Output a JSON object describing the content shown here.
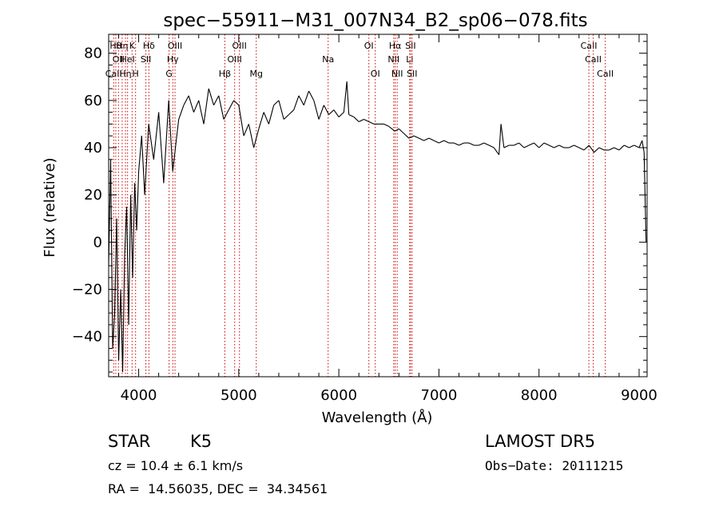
{
  "chart_data": {
    "type": "line",
    "title": "spec−55911−M31_007N34_B2_sp06−078.fits",
    "xlabel": "Wavelength (Å)",
    "ylabel": "Flux (relative)",
    "xlim": [
      3700,
      9080
    ],
    "ylim": [
      -57,
      88
    ],
    "xticks": [
      4000,
      5000,
      6000,
      7000,
      8000,
      9000
    ],
    "xtick_labels": [
      "4000",
      "5000",
      "6000",
      "7000",
      "8000",
      "9000"
    ],
    "yticks": [
      -40,
      -20,
      0,
      20,
      40,
      60,
      80
    ],
    "ytick_labels": [
      "−40",
      "−20",
      "0",
      "20",
      "40",
      "60",
      "80"
    ],
    "grid": false,
    "series": [
      {
        "color": "#000000",
        "x": [
          3700,
          3720,
          3740,
          3760,
          3780,
          3800,
          3820,
          3840,
          3860,
          3880,
          3900,
          3920,
          3940,
          3960,
          3980,
          4000,
          4030,
          4060,
          4100,
          4150,
          4200,
          4250,
          4300,
          4340,
          4400,
          4450,
          4500,
          4550,
          4600,
          4650,
          4700,
          4750,
          4800,
          4850,
          4900,
          4950,
          5000,
          5050,
          5100,
          5150,
          5200,
          5250,
          5300,
          5350,
          5400,
          5450,
          5500,
          5550,
          5600,
          5650,
          5700,
          5750,
          5800,
          5850,
          5900,
          5950,
          6000,
          6050,
          6080,
          6100,
          6150,
          6200,
          6250,
          6300,
          6350,
          6400,
          6450,
          6500,
          6560,
          6600,
          6650,
          6700,
          6750,
          6800,
          6850,
          6900,
          6950,
          7000,
          7050,
          7100,
          7150,
          7200,
          7250,
          7300,
          7350,
          7400,
          7450,
          7500,
          7550,
          7600,
          7620,
          7650,
          7700,
          7750,
          7800,
          7850,
          7900,
          7950,
          8000,
          8050,
          8100,
          8150,
          8200,
          8250,
          8300,
          8350,
          8400,
          8450,
          8500,
          8550,
          8600,
          8650,
          8700,
          8750,
          8800,
          8850,
          8900,
          8950,
          9000,
          9030,
          9050,
          9070
        ],
        "y": [
          -10,
          35,
          -45,
          -30,
          10,
          -50,
          -20,
          -55,
          -5,
          15,
          -35,
          20,
          -15,
          25,
          5,
          30,
          45,
          20,
          50,
          35,
          55,
          25,
          60,
          30,
          52,
          58,
          62,
          55,
          60,
          50,
          65,
          58,
          62,
          52,
          56,
          60,
          58,
          45,
          50,
          40,
          48,
          55,
          50,
          58,
          60,
          52,
          54,
          56,
          62,
          58,
          64,
          60,
          52,
          58,
          54,
          56,
          53,
          55,
          68,
          54,
          53,
          51,
          52,
          51,
          50,
          50,
          50,
          49,
          47,
          48,
          46,
          44,
          45,
          44,
          43,
          44,
          43,
          42,
          43,
          42,
          42,
          41,
          42,
          42,
          41,
          41,
          42,
          41,
          40,
          37,
          50,
          40,
          41,
          41,
          42,
          40,
          41,
          42,
          40,
          42,
          41,
          40,
          41,
          40,
          40,
          41,
          40,
          39,
          41,
          38,
          40,
          39,
          39,
          40,
          39,
          41,
          40,
          41,
          40,
          43,
          38,
          0
        ]
      }
    ],
    "line_markers": [
      {
        "wavelength": 3750,
        "row": 3,
        "label": "CaII"
      },
      {
        "wavelength": 3771,
        "row": 1,
        "label": "Hθ"
      },
      {
        "wavelength": 3798,
        "row": 2,
        "label": "OII"
      },
      {
        "wavelength": 3835,
        "row": 1,
        "label": "Hη"
      },
      {
        "wavelength": 3868,
        "row": 3,
        "label": "Hη"
      },
      {
        "wavelength": 3889,
        "row": 2,
        "label": "HeI"
      },
      {
        "wavelength": 3934,
        "row": 1,
        "label": "K"
      },
      {
        "wavelength": 3969,
        "row": 3,
        "label": "H"
      },
      {
        "wavelength": 4072,
        "row": 2,
        "label": "SII"
      },
      {
        "wavelength": 4102,
        "row": 1,
        "label": "Hδ"
      },
      {
        "wavelength": 4304,
        "row": 3,
        "label": "G"
      },
      {
        "wavelength": 4341,
        "row": 2,
        "label": "Hγ"
      },
      {
        "wavelength": 4363,
        "row": 1,
        "label": "OIII"
      },
      {
        "wavelength": 4861,
        "row": 3,
        "label": "Hβ"
      },
      {
        "wavelength": 4959,
        "row": 2,
        "label": "OIII"
      },
      {
        "wavelength": 5007,
        "row": 1,
        "label": "OIII"
      },
      {
        "wavelength": 5175,
        "row": 3,
        "label": "Mg"
      },
      {
        "wavelength": 5893,
        "row": 2,
        "label": "Na"
      },
      {
        "wavelength": 6300,
        "row": 1,
        "label": "OI"
      },
      {
        "wavelength": 6364,
        "row": 3,
        "label": "OI"
      },
      {
        "wavelength": 6548,
        "row": 2,
        "label": "NII"
      },
      {
        "wavelength": 6563,
        "row": 1,
        "label": "Hα"
      },
      {
        "wavelength": 6583,
        "row": 3,
        "label": "NII"
      },
      {
        "wavelength": 6708,
        "row": 2,
        "label": "Li"
      },
      {
        "wavelength": 6716,
        "row": 1,
        "label": "SII"
      },
      {
        "wavelength": 6731,
        "row": 3,
        "label": "SII"
      },
      {
        "wavelength": 8498,
        "row": 1,
        "label": "CaII"
      },
      {
        "wavelength": 8542,
        "row": 2,
        "label": "CaII"
      },
      {
        "wavelength": 8662,
        "row": 3,
        "label": "CaII"
      }
    ]
  },
  "info": {
    "class_label": "STAR",
    "subclass_label": "K5",
    "redshift_text": "cz = 10.4 ± 6.1 km/s",
    "coords_text": "RA =  14.56035, DEC =  34.34561",
    "survey_text": "LAMOST DR5",
    "obsdate_text": "Obs−Date: 20111215"
  },
  "colors": {
    "spectrum": "#000000",
    "line_marker": "#cc0000",
    "axes": "#000000",
    "background": "#ffffff"
  }
}
